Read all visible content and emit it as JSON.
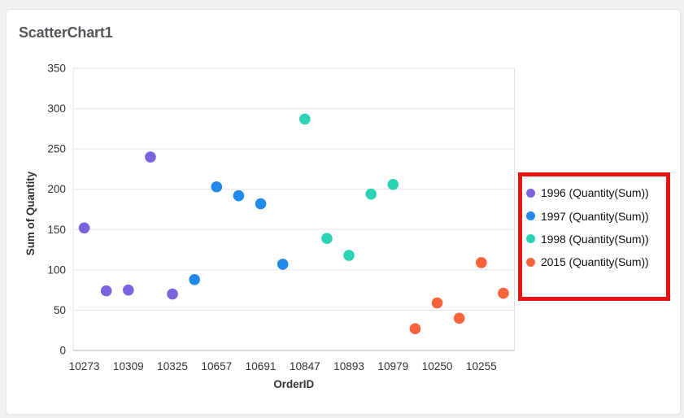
{
  "page": {
    "background_color": "#f0f0f1",
    "card_background_color": "#ffffff"
  },
  "chart_data": {
    "type": "scatter",
    "title": "ScatterChart1",
    "xlabel": "OrderID",
    "ylabel": "Sum of Quantity",
    "ylim": [
      0,
      350
    ],
    "ytick_interval": 50,
    "grid": "horizontal",
    "legend_position": "right",
    "slot_count": 20,
    "x_tick_labels": [
      "10273",
      "10309",
      "10325",
      "10657",
      "10691",
      "10847",
      "10893",
      "10979",
      "10250",
      "10255"
    ],
    "x_tick_slots": [
      0,
      2,
      4,
      6,
      8,
      10,
      12,
      14,
      16,
      18
    ],
    "series": [
      {
        "name": "1996 (Quantity(Sum))",
        "color": "#7c63de",
        "points": [
          [
            0,
            152
          ],
          [
            1,
            74
          ],
          [
            2,
            75
          ],
          [
            3,
            240
          ],
          [
            4,
            70
          ]
        ]
      },
      {
        "name": "1997 (Quantity(Sum))",
        "color": "#2189ec",
        "points": [
          [
            5,
            88
          ],
          [
            6,
            203
          ],
          [
            7,
            192
          ],
          [
            8,
            182
          ],
          [
            9,
            107
          ]
        ]
      },
      {
        "name": "1998 (Quantity(Sum))",
        "color": "#2bd2b6",
        "points": [
          [
            10,
            287
          ],
          [
            11,
            139
          ],
          [
            12,
            118
          ],
          [
            13,
            194
          ],
          [
            14,
            206
          ]
        ]
      },
      {
        "name": "2015 (Quantity(Sum))",
        "color": "#f8633c",
        "points": [
          [
            15,
            27
          ],
          [
            16,
            59
          ],
          [
            17,
            40
          ],
          [
            18,
            109
          ],
          [
            19,
            71
          ]
        ]
      }
    ],
    "annotation": {
      "shape": "rectangle",
      "color": "#e81414",
      "highlights": "legend"
    }
  }
}
